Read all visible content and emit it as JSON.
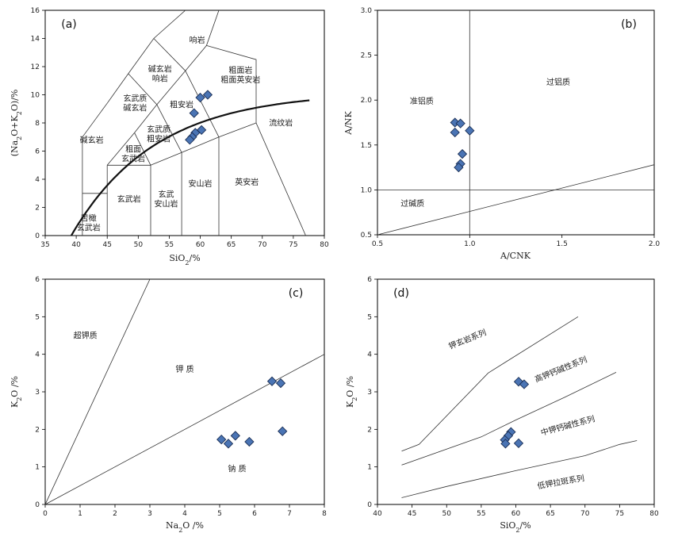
{
  "chart_data": [
    {
      "type": "scatter",
      "panel_label": "(a)",
      "xlabel": "SiO2/%",
      "ylabel": "(Na2O+K2O)/%",
      "xlim": [
        35,
        80
      ],
      "ylim": [
        0,
        16
      ],
      "xticks": [
        35,
        40,
        45,
        50,
        55,
        60,
        65,
        70,
        75,
        80
      ],
      "yticks": [
        0,
        2,
        4,
        6,
        8,
        10,
        12,
        14,
        16
      ],
      "region_labels": [
        {
          "lines": [
            "响岩"
          ],
          "x": 59.5,
          "y": 13.9
        },
        {
          "lines": [
            "碱玄岩",
            "响岩"
          ],
          "x": 53.5,
          "y": 11.5
        },
        {
          "lines": [
            "粗面岩",
            "粗面英安岩"
          ],
          "x": 66.5,
          "y": 11.4
        },
        {
          "lines": [
            "玄武质",
            "碱玄岩"
          ],
          "x": 49.5,
          "y": 9.4
        },
        {
          "lines": [
            "粗安岩"
          ],
          "x": 57,
          "y": 9.3
        },
        {
          "lines": [
            "流纹岩"
          ],
          "x": 73,
          "y": 8
        },
        {
          "lines": [
            "碱玄岩"
          ],
          "x": 42.5,
          "y": 6.8
        },
        {
          "lines": [
            "玄武质",
            "粗安岩"
          ],
          "x": 53.3,
          "y": 7.2
        },
        {
          "lines": [
            "粗面",
            "玄武岩"
          ],
          "x": 49.2,
          "y": 5.8
        },
        {
          "lines": [
            "玄武岩"
          ],
          "x": 48.5,
          "y": 2.6
        },
        {
          "lines": [
            "玄武",
            "安山岩"
          ],
          "x": 54.5,
          "y": 2.6
        },
        {
          "lines": [
            "安山岩"
          ],
          "x": 60,
          "y": 3.7
        },
        {
          "lines": [
            "英安岩"
          ],
          "x": 67.5,
          "y": 3.8
        },
        {
          "lines": [
            "苦橄",
            "玄武岩"
          ],
          "x": 42,
          "y": 0.9
        }
      ],
      "points": [
        {
          "x": 60.0,
          "y": 9.8
        },
        {
          "x": 61.2,
          "y": 10.0
        },
        {
          "x": 59.0,
          "y": 8.7
        },
        {
          "x": 60.2,
          "y": 7.5
        },
        {
          "x": 59.2,
          "y": 7.3
        },
        {
          "x": 58.7,
          "y": 7.0
        },
        {
          "x": 58.3,
          "y": 6.8
        }
      ]
    },
    {
      "type": "scatter",
      "panel_label": "(b)",
      "xlabel": "A/CNK",
      "ylabel": "A/NK",
      "xlim": [
        0.5,
        2.0
      ],
      "ylim": [
        0.5,
        3.0
      ],
      "xticks": [
        0.5,
        1.0,
        1.5,
        2.0
      ],
      "yticks": [
        0.5,
        1.0,
        1.5,
        2.0,
        2.5,
        3.0
      ],
      "region_labels": [
        {
          "lines": [
            "准铝质"
          ],
          "x": 0.74,
          "y": 1.99
        },
        {
          "lines": [
            "过铝质"
          ],
          "x": 1.48,
          "y": 2.2
        },
        {
          "lines": [
            "过碱质"
          ],
          "x": 0.69,
          "y": 0.85
        }
      ],
      "points": [
        {
          "x": 0.92,
          "y": 1.75
        },
        {
          "x": 0.95,
          "y": 1.74
        },
        {
          "x": 0.92,
          "y": 1.64
        },
        {
          "x": 1.0,
          "y": 1.66
        },
        {
          "x": 0.96,
          "y": 1.4
        },
        {
          "x": 0.95,
          "y": 1.29
        },
        {
          "x": 0.94,
          "y": 1.25
        }
      ]
    },
    {
      "type": "scatter",
      "panel_label": "(c)",
      "xlabel": "Na2O /%",
      "ylabel": "K2O /%",
      "xlim": [
        0,
        8
      ],
      "ylim": [
        0,
        6
      ],
      "xticks": [
        0,
        1,
        2,
        3,
        4,
        5,
        6,
        7,
        8
      ],
      "yticks": [
        0,
        1,
        2,
        3,
        4,
        5,
        6
      ],
      "region_labels": [
        {
          "lines": [
            "超钾质"
          ],
          "x": 1.15,
          "y": 4.5
        },
        {
          "lines": [
            "钾 质"
          ],
          "x": 4.0,
          "y": 3.6
        },
        {
          "lines": [
            "钠 质"
          ],
          "x": 5.5,
          "y": 0.95
        }
      ],
      "points": [
        {
          "x": 6.5,
          "y": 3.28
        },
        {
          "x": 6.75,
          "y": 3.23
        },
        {
          "x": 6.8,
          "y": 1.95
        },
        {
          "x": 5.05,
          "y": 1.73
        },
        {
          "x": 5.45,
          "y": 1.83
        },
        {
          "x": 5.25,
          "y": 1.62
        },
        {
          "x": 5.85,
          "y": 1.67
        }
      ]
    },
    {
      "type": "scatter",
      "panel_label": "(d)",
      "xlabel": "SiO2/%",
      "ylabel": "K2O /%",
      "xlim": [
        40,
        80
      ],
      "ylim": [
        0,
        6
      ],
      "xticks": [
        40,
        45,
        50,
        55,
        60,
        65,
        70,
        75,
        80
      ],
      "yticks": [
        0,
        1,
        2,
        3,
        4,
        5,
        6
      ],
      "region_labels": [
        {
          "lines": [
            "钾玄岩系列"
          ],
          "x": 53,
          "y": 4.4,
          "rotate": -22
        },
        {
          "lines": [
            "高钾钙碱性系列"
          ],
          "x": 66.5,
          "y": 3.6,
          "rotate": -22
        },
        {
          "lines": [
            "中钾钙碱性系列"
          ],
          "x": 67.5,
          "y": 2.1,
          "rotate": -15
        },
        {
          "lines": [
            "低钾拉斑系列"
          ],
          "x": 66.5,
          "y": 0.6,
          "rotate": -10
        }
      ],
      "points": [
        {
          "x": 60.4,
          "y": 3.27
        },
        {
          "x": 61.2,
          "y": 3.2
        },
        {
          "x": 59.3,
          "y": 1.93
        },
        {
          "x": 58.9,
          "y": 1.83
        },
        {
          "x": 58.4,
          "y": 1.72
        },
        {
          "x": 58.5,
          "y": 1.62
        },
        {
          "x": 60.4,
          "y": 1.63
        }
      ]
    }
  ]
}
